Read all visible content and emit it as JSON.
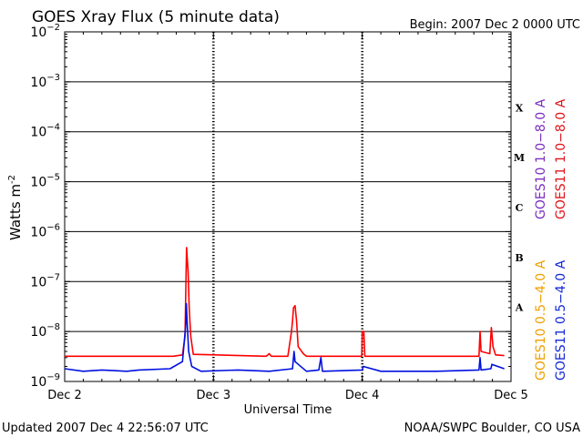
{
  "title": "GOES Xray Flux (5 minute data)",
  "begin_label": "Begin:  2007 Dec 2 0000 UTC",
  "ylabel_base": "Watts m",
  "ylabel_exp": "-2",
  "xlabel": "Universal Time",
  "footer_left": "Updated 2007 Dec  4 22:56:07 UTC",
  "footer_right": "NOAA/SWPC Boulder, CO USA",
  "flare_classes": [
    "X",
    "M",
    "C",
    "B",
    "A"
  ],
  "legend_right": [
    {
      "label": "GOES10 1.0−8.0 A",
      "color": "#7b2fbe"
    },
    {
      "label": "GOES11 1.0−8.0 A",
      "color": "#e0141b"
    }
  ],
  "legend_lower": [
    {
      "label": "GOES10 0.5−4.0 A",
      "color": "#f0a000"
    },
    {
      "label": "GOES11 0.5−4.0 A",
      "color": "#1428d8"
    }
  ],
  "colors": {
    "long": "#ff0000",
    "short": "#0010e0",
    "grid": "#000000"
  },
  "chart_data": {
    "type": "line",
    "title": "GOES Xray Flux (5 minute data)",
    "xlabel": "Universal Time",
    "ylabel": "Watts m-2",
    "yscale": "log",
    "ylim": [
      1e-09,
      0.01
    ],
    "y_ticks": [
      {
        "value": 1e-09,
        "mant": "10",
        "exp": "−9"
      },
      {
        "value": 1e-08,
        "mant": "10",
        "exp": "−8"
      },
      {
        "value": 1e-07,
        "mant": "10",
        "exp": "−7"
      },
      {
        "value": 1e-06,
        "mant": "10",
        "exp": "−6"
      },
      {
        "value": 1e-05,
        "mant": "10",
        "exp": "−5"
      },
      {
        "value": 0.0001,
        "mant": "10",
        "exp": "−4"
      },
      {
        "value": 0.001,
        "mant": "10",
        "exp": "−3"
      },
      {
        "value": 0.01,
        "mant": "10",
        "exp": "−2"
      }
    ],
    "xlim": [
      "2007-12-02 00:00",
      "2007-12-05 00:00"
    ],
    "x_ticks": [
      "Dec 2",
      "Dec 3",
      "Dec 4",
      "Dec 5"
    ],
    "grid": "horizontal at decades",
    "series": [
      {
        "name": "GOES11 1.0-8.0 A",
        "color": "#ff0000",
        "points": [
          [
            "2007-12-02 00:00",
            3.2e-09
          ],
          [
            "2007-12-02 17:30",
            3.2e-09
          ],
          [
            "2007-12-02 19:00",
            3.4e-09
          ],
          [
            "2007-12-02 19:25",
            8e-09
          ],
          [
            "2007-12-02 19:35",
            1.5e-07
          ],
          [
            "2007-12-02 19:40",
            4.8e-07
          ],
          [
            "2007-12-02 19:48",
            2.5e-07
          ],
          [
            "2007-12-02 19:55",
            1.6e-07
          ],
          [
            "2007-12-02 20:05",
            3e-08
          ],
          [
            "2007-12-02 20:20",
            8e-09
          ],
          [
            "2007-12-02 20:45",
            3.5e-09
          ],
          [
            "2007-12-03 08:30",
            3.2e-09
          ],
          [
            "2007-12-03 09:00",
            3.6e-09
          ],
          [
            "2007-12-03 09:20",
            3.2e-09
          ],
          [
            "2007-12-03 12:00",
            3.2e-09
          ],
          [
            "2007-12-03 12:35",
            1e-08
          ],
          [
            "2007-12-03 12:45",
            1.6e-08
          ],
          [
            "2007-12-03 12:55",
            3e-08
          ],
          [
            "2007-12-03 13:10",
            3.3e-08
          ],
          [
            "2007-12-03 13:25",
            1.6e-08
          ],
          [
            "2007-12-03 13:40",
            5e-09
          ],
          [
            "2007-12-03 14:30",
            3.6e-09
          ],
          [
            "2007-12-03 15:00",
            3.2e-09
          ],
          [
            "2007-12-03 23:55",
            3.2e-09
          ],
          [
            "2007-12-04 00:00",
            1e-08
          ],
          [
            "2007-12-04 00:15",
            1e-08
          ],
          [
            "2007-12-04 00:25",
            3.2e-09
          ],
          [
            "2007-12-04 18:50",
            3.2e-09
          ],
          [
            "2007-12-04 19:00",
            1e-08
          ],
          [
            "2007-12-04 19:10",
            4e-09
          ],
          [
            "2007-12-04 20:35",
            3.6e-09
          ],
          [
            "2007-12-04 20:50",
            1.2e-08
          ],
          [
            "2007-12-04 21:05",
            5e-09
          ],
          [
            "2007-12-04 21:30",
            3.4e-09
          ],
          [
            "2007-12-04 22:55",
            3.3e-09
          ]
        ]
      },
      {
        "name": "GOES11 0.5-4.0 A",
        "color": "#0010e0",
        "points": [
          [
            "2007-12-02 00:00",
            1.8e-09
          ],
          [
            "2007-12-02 03:00",
            1.6e-09
          ],
          [
            "2007-12-02 06:00",
            1.7e-09
          ],
          [
            "2007-12-02 10:00",
            1.6e-09
          ],
          [
            "2007-12-02 12:00",
            1.7e-09
          ],
          [
            "2007-12-02 17:00",
            1.8e-09
          ],
          [
            "2007-12-02 19:00",
            2.5e-09
          ],
          [
            "2007-12-02 19:30",
            1.2e-08
          ],
          [
            "2007-12-02 19:38",
            3.6e-08
          ],
          [
            "2007-12-02 19:45",
            1.6e-08
          ],
          [
            "2007-12-02 20:00",
            4e-09
          ],
          [
            "2007-12-02 20:30",
            2e-09
          ],
          [
            "2007-12-02 22:00",
            1.6e-09
          ],
          [
            "2007-12-03 04:00",
            1.7e-09
          ],
          [
            "2007-12-03 09:00",
            1.6e-09
          ],
          [
            "2007-12-03 12:45",
            1.8e-09
          ],
          [
            "2007-12-03 13:00",
            4e-09
          ],
          [
            "2007-12-03 13:10",
            2.5e-09
          ],
          [
            "2007-12-03 15:00",
            1.6e-09
          ],
          [
            "2007-12-03 17:00",
            1.7e-09
          ],
          [
            "2007-12-03 17:20",
            3e-09
          ],
          [
            "2007-12-03 17:35",
            1.6e-09
          ],
          [
            "2007-12-04 00:00",
            1.7e-09
          ],
          [
            "2007-12-04 00:10",
            2e-09
          ],
          [
            "2007-12-04 03:00",
            1.6e-09
          ],
          [
            "2007-12-04 12:00",
            1.6e-09
          ],
          [
            "2007-12-04 18:50",
            1.7e-09
          ],
          [
            "2007-12-04 19:00",
            3e-09
          ],
          [
            "2007-12-04 19:10",
            1.7e-09
          ],
          [
            "2007-12-04 20:45",
            1.8e-09
          ],
          [
            "2007-12-04 20:55",
            2.2e-09
          ],
          [
            "2007-12-04 22:55",
            1.8e-09
          ]
        ]
      }
    ]
  }
}
